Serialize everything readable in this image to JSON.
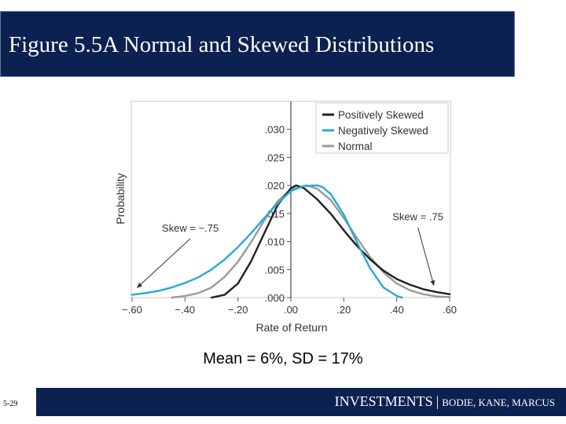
{
  "slide": {
    "title": "Figure 5.5A Normal and Skewed Distributions",
    "caption": "Mean = 6%,  SD = 17%",
    "page_number": "5-29",
    "footer": {
      "book": "INVESTMENTS",
      "separator": "|",
      "authors": "BODIE, KANE, MARCUS"
    }
  },
  "colors": {
    "title_bar": "#0b2150",
    "positive": "#231f20",
    "negative": "#29a8d8",
    "normal": "#9a9a9a"
  },
  "chart_data": {
    "type": "line",
    "xlabel": "Rate of Return",
    "ylabel": "Probability",
    "xlim": [
      -0.6,
      0.6
    ],
    "ylim": [
      0,
      0.035
    ],
    "x_ticks": [
      -0.6,
      -0.4,
      -0.2,
      0.0,
      0.2,
      0.4,
      0.6
    ],
    "x_tick_labels": [
      "−.60",
      "−.40",
      "−.20",
      ".00",
      ".20",
      ".40",
      ".60"
    ],
    "y_ticks": [
      0.0,
      0.005,
      0.01,
      0.015,
      0.02,
      0.025,
      0.03
    ],
    "y_tick_labels": [
      ".000",
      ".005",
      ".010",
      ".015",
      ".020",
      ".025",
      ".030"
    ],
    "legend_position": "top-right",
    "series": [
      {
        "name": "Positively Skewed",
        "color": "#231f20",
        "x": [
          -0.3,
          -0.25,
          -0.2,
          -0.15,
          -0.1,
          -0.05,
          0.0,
          0.02,
          0.05,
          0.1,
          0.15,
          0.2,
          0.25,
          0.3,
          0.35,
          0.4,
          0.45,
          0.5,
          0.55,
          0.6
        ],
        "y": [
          0.0,
          0.0005,
          0.0025,
          0.0065,
          0.0115,
          0.0165,
          0.0195,
          0.02,
          0.0195,
          0.0175,
          0.015,
          0.012,
          0.0092,
          0.0068,
          0.0048,
          0.0033,
          0.0023,
          0.0015,
          0.001,
          0.0006
        ]
      },
      {
        "name": "Negatively Skewed",
        "color": "#29a8d8",
        "x": [
          -0.6,
          -0.55,
          -0.5,
          -0.45,
          -0.4,
          -0.35,
          -0.3,
          -0.25,
          -0.2,
          -0.15,
          -0.1,
          -0.05,
          0.0,
          0.05,
          0.1,
          0.12,
          0.15,
          0.2,
          0.25,
          0.3,
          0.35,
          0.4,
          0.42
        ],
        "y": [
          0.0005,
          0.0008,
          0.0012,
          0.0018,
          0.0026,
          0.0036,
          0.005,
          0.0068,
          0.009,
          0.0115,
          0.0142,
          0.0168,
          0.019,
          0.0199,
          0.02,
          0.0197,
          0.0185,
          0.0148,
          0.0098,
          0.0052,
          0.0018,
          0.0003,
          0.0
        ]
      },
      {
        "name": "Normal",
        "color": "#9a9a9a",
        "x": [
          -0.45,
          -0.4,
          -0.35,
          -0.3,
          -0.25,
          -0.2,
          -0.15,
          -0.1,
          -0.05,
          0.0,
          0.06,
          0.1,
          0.15,
          0.2,
          0.25,
          0.3,
          0.35,
          0.4,
          0.45,
          0.5,
          0.55,
          0.6
        ],
        "y": [
          0.0,
          0.0003,
          0.0008,
          0.0018,
          0.0037,
          0.0064,
          0.0099,
          0.0138,
          0.0172,
          0.0193,
          0.02,
          0.0194,
          0.0174,
          0.0142,
          0.0106,
          0.0072,
          0.0045,
          0.0025,
          0.0013,
          0.0006,
          0.0002,
          0.0001
        ]
      }
    ],
    "annotations": [
      {
        "text": "Skew = −.75",
        "points_to": "left tail",
        "from": [
          -0.38,
          0.0105
        ],
        "to": [
          -0.58,
          0.0018
        ]
      },
      {
        "text": "Skew = .75",
        "points_to": "right tail",
        "from": [
          0.48,
          0.0125
        ],
        "to": [
          0.54,
          0.0022
        ]
      }
    ]
  }
}
